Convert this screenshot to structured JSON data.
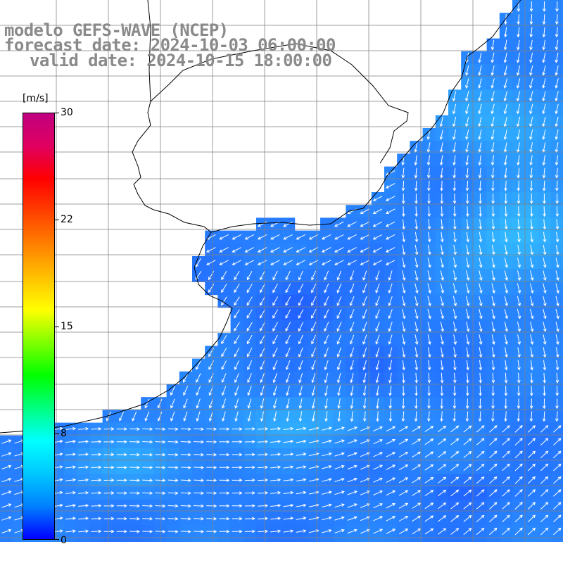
{
  "title": {
    "line1": "modelo GEFS-WAVE (NCEP)",
    "line2": "forecast date: 2024-10-03 06:00:00",
    "line3": "valid date: 2024-10-15 18:00:00"
  },
  "colorbar": {
    "unit": "[m/s]",
    "ticks": [
      {
        "label": "30",
        "value": 30
      },
      {
        "label": "22",
        "value": 22
      },
      {
        "label": "15",
        "value": 15
      },
      {
        "label": "8",
        "value": 8
      },
      {
        "label": "0",
        "value": 0
      }
    ],
    "colors": [
      "#0000ff",
      "#0080ff",
      "#00c8ff",
      "#00ffff",
      "#00ff80",
      "#00ff00",
      "#80ff00",
      "#ffff00",
      "#ffc000",
      "#ff8000",
      "#ff4000",
      "#ff0000",
      "#e00060",
      "#c00080"
    ]
  },
  "map": {
    "land_color": "#ffffff",
    "ocean_low_color": "#1e4fff",
    "ocean_high_color": "#37d6ff",
    "grid_color": "#808080",
    "arrow_color": "#ffffff",
    "coast_color": "#000000",
    "field_description_hidden": false
  }
}
